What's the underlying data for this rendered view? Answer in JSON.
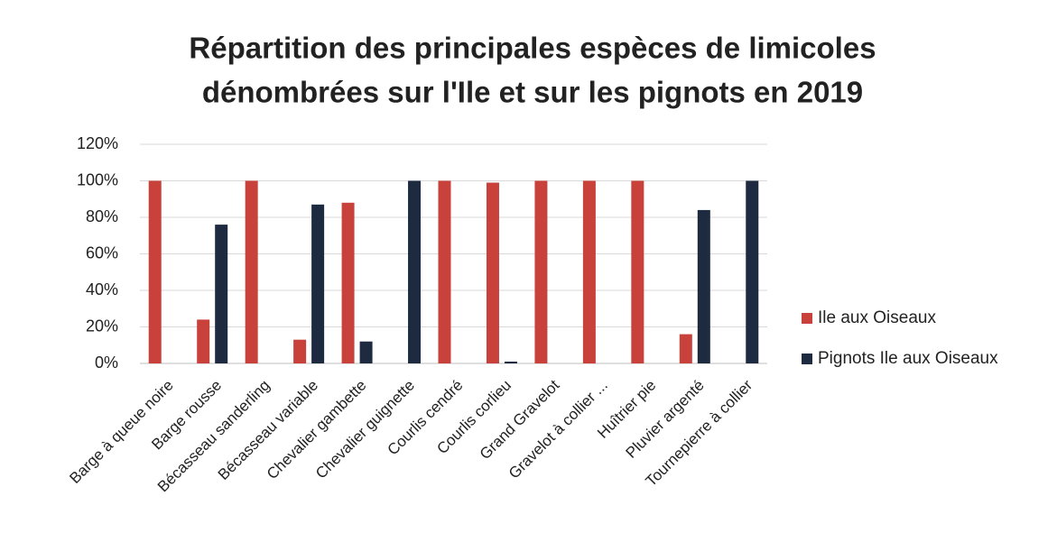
{
  "chart_data": {
    "type": "bar",
    "title": [
      "Répartition des principales espèces de limicoles",
      "dénombrées sur l'Ile et sur les pignots en 2019"
    ],
    "categories": [
      "Barge à queue noire",
      "Barge rousse",
      "Bécasseau sanderling",
      "Bécasseau variable",
      "Chevalier gambette",
      "Chevalier guignette",
      "Courlis cendré",
      "Courlis corlieu",
      "Grand Gravelot",
      "Gravelot à collier ...",
      "Huîtrier pie",
      "Pluvier argenté",
      "Tournepierre à collier"
    ],
    "series": [
      {
        "name": "Ile aux Oiseaux",
        "color": "#c8413b",
        "values": [
          100,
          24,
          100,
          13,
          88,
          0,
          100,
          99,
          100,
          100,
          100,
          16,
          0
        ]
      },
      {
        "name": "Pignots Ile aux Oiseaux",
        "color": "#1e2a40",
        "values": [
          0,
          76,
          0,
          87,
          12,
          100,
          0,
          1,
          0,
          0,
          0,
          84,
          100
        ]
      }
    ],
    "ylim": [
      0,
      120
    ],
    "yticks": [
      {
        "value": 0,
        "label": "0%"
      },
      {
        "value": 20,
        "label": "20%"
      },
      {
        "value": 40,
        "label": "40%"
      },
      {
        "value": 60,
        "label": "60%"
      },
      {
        "value": 80,
        "label": "80%"
      },
      {
        "value": 100,
        "label": "100%"
      },
      {
        "value": 120,
        "label": "120%"
      }
    ],
    "grid": true,
    "legend": "right"
  }
}
